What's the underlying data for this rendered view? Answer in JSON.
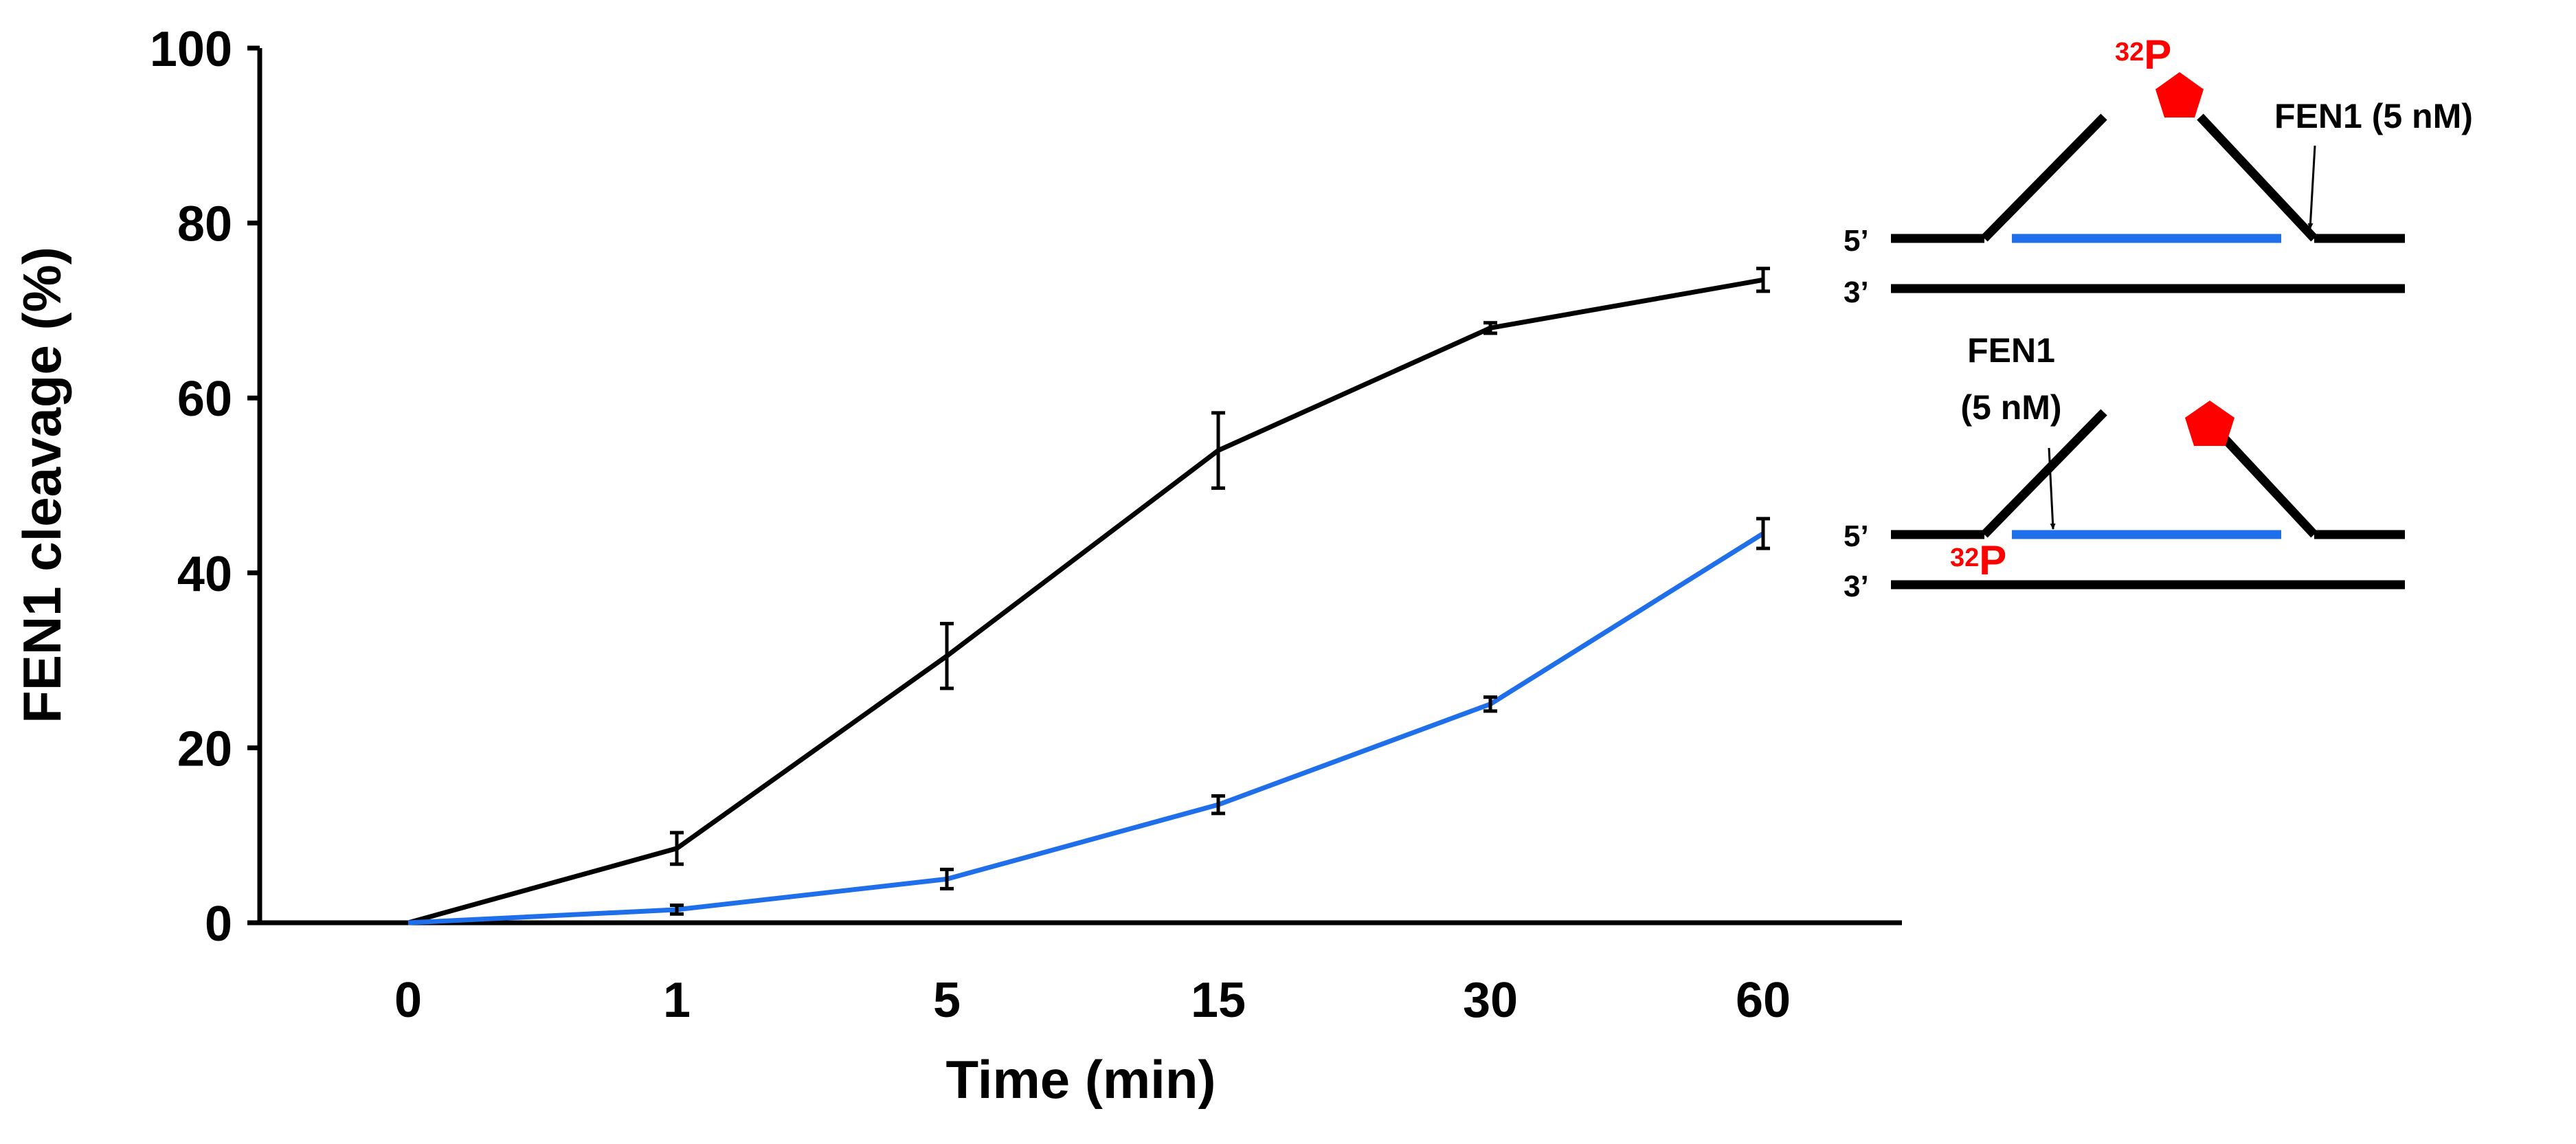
{
  "chart_data": {
    "type": "line",
    "title": "",
    "xlabel": "Time (min)",
    "ylabel": "FEN1 cleavage (%)",
    "categories": [
      "0",
      "1",
      "5",
      "15",
      "30",
      "60"
    ],
    "ylim": [
      0,
      100
    ],
    "yticks": [
      0,
      20,
      40,
      60,
      80,
      100
    ],
    "grid": false,
    "series": [
      {
        "name": "black",
        "color": "#000000",
        "values": [
          0,
          8.5,
          30.5,
          54,
          68,
          73.5
        ],
        "errors": [
          0,
          1.8,
          3.7,
          4.3,
          0.6,
          1.3
        ]
      },
      {
        "name": "blue",
        "color": "#1f6fea",
        "values": [
          0,
          1.5,
          5,
          13.5,
          25,
          44.5
        ],
        "errors": [
          0,
          0.5,
          1.1,
          1.0,
          0.8,
          1.7
        ]
      }
    ]
  },
  "schematic": {
    "top": {
      "label_5prime": "5’",
      "label_3prime": "3’",
      "p32_sup": "32",
      "p32_main": "P",
      "fen1_label": "FEN1 (5 nM)"
    },
    "bottom": {
      "label_5prime": "5’",
      "label_3prime": "3’",
      "p32_sup": "32",
      "p32_main": "P",
      "fen1_line1": "FEN1",
      "fen1_line2": "(5 nM)"
    },
    "colors": {
      "label": "#ff0000",
      "strand": "#000000",
      "primer": "#1f6fea"
    }
  }
}
